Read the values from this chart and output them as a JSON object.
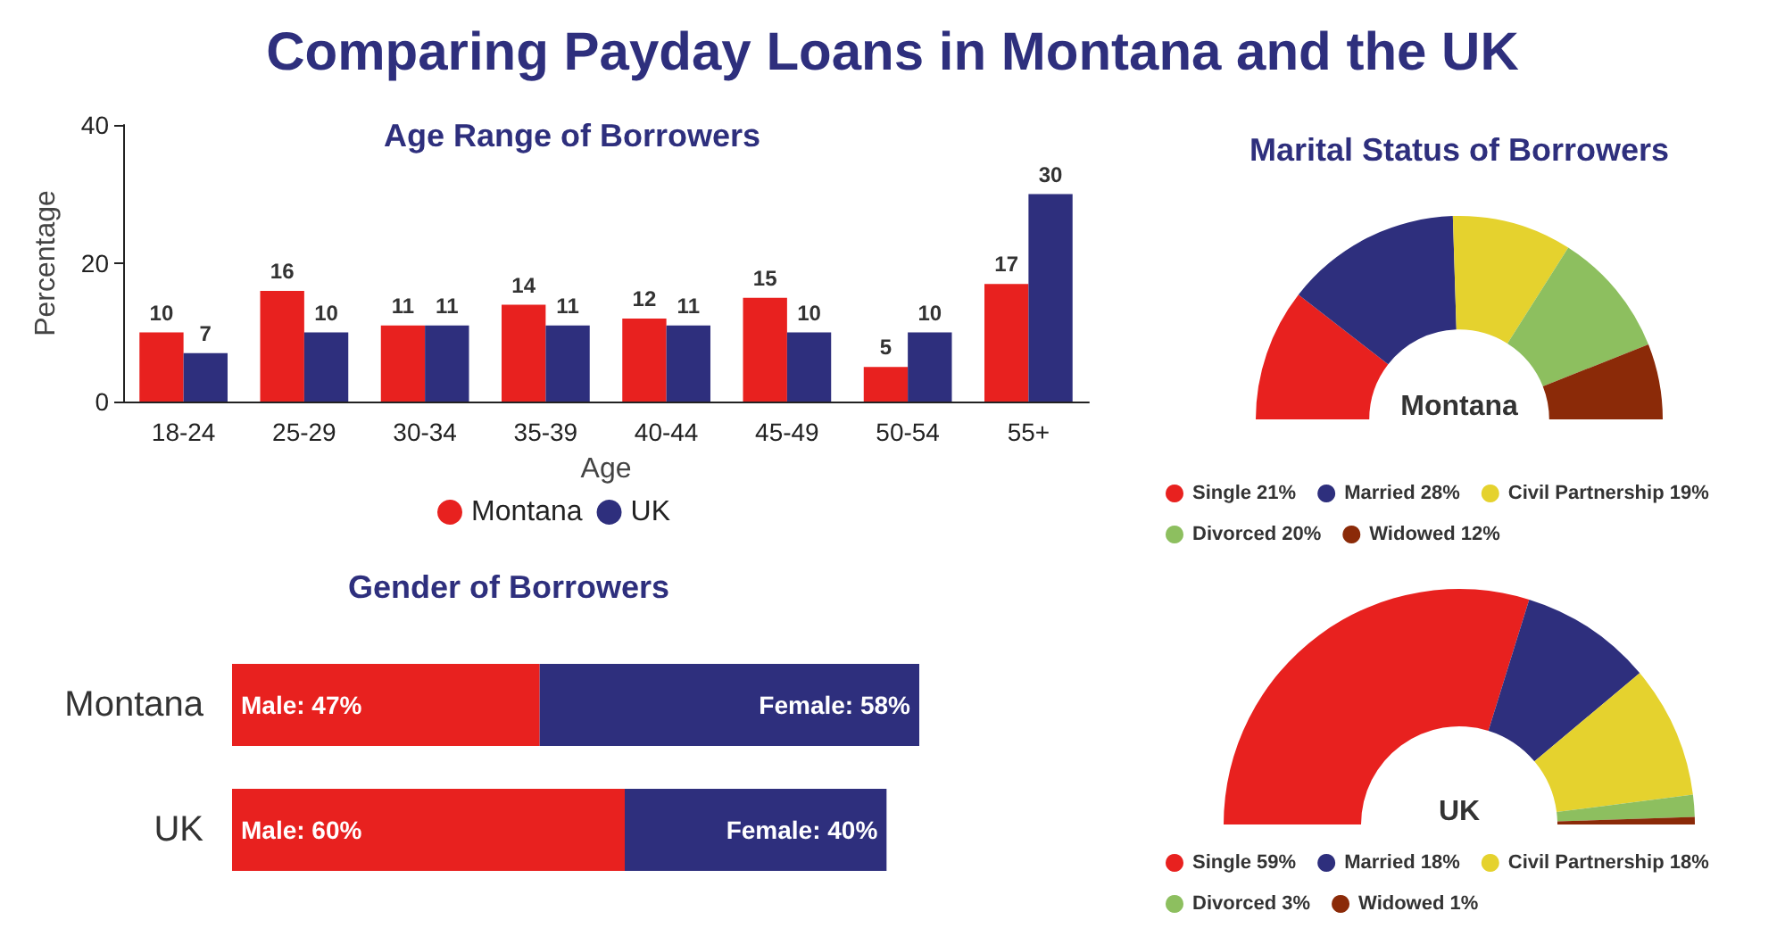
{
  "chart_data": [
    {
      "type": "other",
      "title": "Comparing Payday Loans in Montana and the UK"
    },
    {
      "type": "bar",
      "title": "Age Range of Borrowers",
      "xlabel": "Age",
      "ylabel": "Percentage",
      "categories": [
        "18-24",
        "25-29",
        "30-34",
        "35-39",
        "40-44",
        "45-49",
        "50-54",
        "55+"
      ],
      "series": [
        {
          "name": "Montana",
          "color": "#e8211f",
          "values": [
            10,
            16,
            11,
            14,
            12,
            15,
            5,
            17
          ]
        },
        {
          "name": "UK",
          "color": "#2e2f7d",
          "values": [
            7,
            10,
            11,
            11,
            11,
            10,
            10,
            30
          ]
        }
      ],
      "ylim": [
        0,
        40
      ],
      "yticks": [
        0,
        20,
        40
      ],
      "data_labels": true,
      "legend": "bottom",
      "grid": false
    },
    {
      "type": "donut",
      "title": "Marital Status of Borrowers",
      "subtitle": "Montana",
      "categories": [
        "Single",
        "Married",
        "Civil Partnership",
        "Divorced",
        "Widowed"
      ],
      "values": [
        21,
        28,
        19,
        20,
        12
      ],
      "value_labels": [
        "21%",
        "28%",
        "19%",
        "20%",
        "12%"
      ],
      "colors": [
        "#e8211f",
        "#2e2f7d",
        "#e5d22e",
        "#8dbf5f",
        "#8b2a08"
      ],
      "legend": "bottom"
    },
    {
      "type": "bar",
      "title": "Gender of Borrowers",
      "orientation": "horizontal",
      "stacked": true,
      "categories": [
        "Montana",
        "UK"
      ],
      "series": [
        {
          "name": "Male:",
          "color": "#e8211f",
          "values": [
            47,
            60
          ],
          "value_labels": [
            "47%",
            "60%"
          ]
        },
        {
          "name": "Female:",
          "color": "#2e2f7d",
          "values": [
            58,
            40
          ],
          "value_labels": [
            "58%",
            "40%"
          ]
        }
      ],
      "legend": false
    },
    {
      "type": "donut",
      "subtitle": "UK",
      "categories": [
        "Single",
        "Married",
        "Civil Partnership",
        "Divorced",
        "Widowed"
      ],
      "values": [
        59,
        18,
        18,
        3,
        1
      ],
      "value_labels": [
        "59%",
        "18%",
        "18%",
        "3%",
        "1%"
      ],
      "colors": [
        "#e8211f",
        "#2e2f7d",
        "#e5d22e",
        "#8dbf5f",
        "#8b2a08"
      ],
      "legend": "bottom"
    }
  ]
}
